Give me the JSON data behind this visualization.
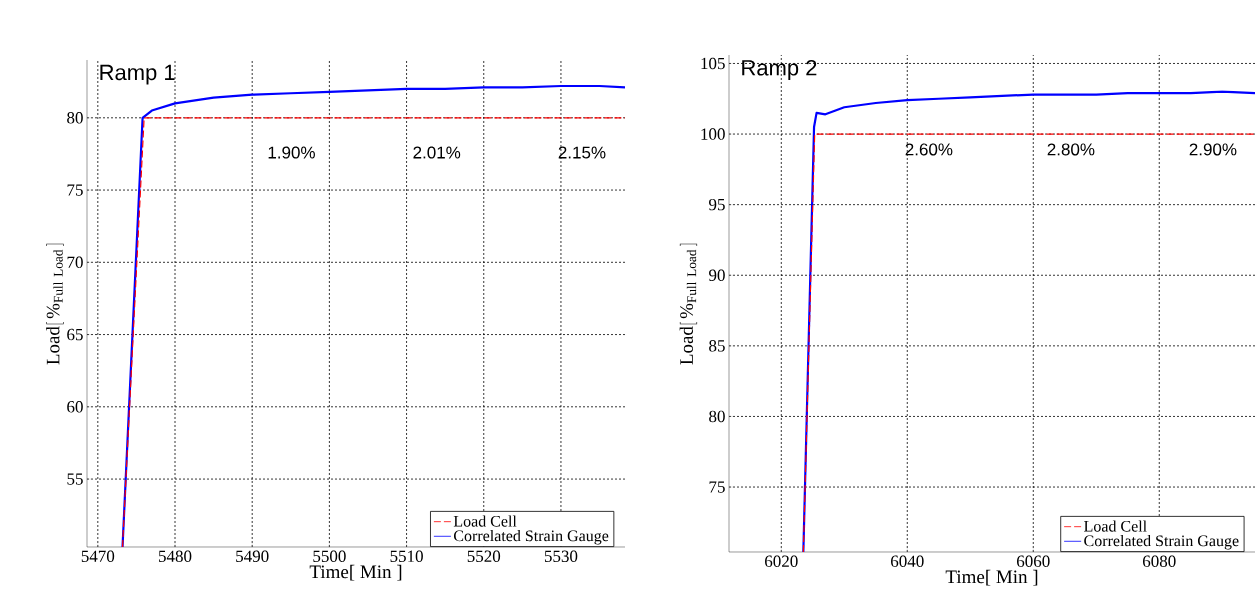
{
  "chart_data": [
    {
      "type": "line",
      "title": "Ramp 1",
      "xlabel": "Time[ Min ]",
      "ylabel": "\\mathrm{Load[\\,\\%_{Full\\ Load}\\,]}",
      "xlim": [
        5468.6,
        5538.3
      ],
      "ylim": [
        50.3,
        84
      ],
      "xticks": [
        5470,
        5480,
        5490,
        5500,
        5510,
        5520,
        5530
      ],
      "yticks": [
        55,
        60,
        65,
        70,
        75,
        80
      ],
      "grid": true,
      "legend": "bottom right",
      "annotations": [
        "1.90%",
        "2.01%",
        "2.15%"
      ],
      "series": [
        {
          "name": "Load Cell",
          "color": "#ff0000",
          "line_style": "dashed",
          "x": [
            5473.2,
            5476.0,
            5480,
            5490,
            5500,
            5510,
            5520,
            5530,
            5538.3
          ],
          "values": [
            50.3,
            80.0,
            80.0,
            80.0,
            80.0,
            80.0,
            80.0,
            80.0,
            80.0
          ]
        },
        {
          "name": "Correlated Strain Gauge",
          "color": "#0000ff",
          "x": [
            5473.2,
            5475.8,
            5477,
            5480,
            5485,
            5490,
            5495,
            5500,
            5505,
            5510,
            5515,
            5520,
            5525,
            5530,
            5535,
            5538.3
          ],
          "values": [
            50.3,
            80.0,
            80.5,
            81.0,
            81.4,
            81.6,
            81.7,
            81.8,
            81.9,
            82.0,
            82.0,
            82.1,
            82.1,
            82.2,
            82.2,
            82.1
          ]
        }
      ]
    },
    {
      "type": "line",
      "title": "Ramp 2",
      "xlabel": "Time[ Min ]",
      "ylabel": "\\mathrm{Load[\\,\\%_{Full\\ Load}\\,]}",
      "xlim": [
        6011.7,
        6095.2
      ],
      "ylim": [
        70.4,
        105.6
      ],
      "xticks": [
        6020,
        6040,
        6060,
        6080
      ],
      "yticks": [
        75,
        80,
        85,
        90,
        95,
        100,
        105
      ],
      "grid": true,
      "legend": "bottom right",
      "annotations": [
        "2.60%",
        "2.80%",
        "2.90%"
      ],
      "series": [
        {
          "name": "Load Cell",
          "color": "#ff0000",
          "line_style": "dashed",
          "x": [
            6023.5,
            6025.3,
            6030,
            6040,
            6050,
            6060,
            6070,
            6080,
            6090,
            6095.2
          ],
          "values": [
            70.4,
            100.0,
            100.0,
            100.0,
            100.0,
            100.0,
            100.0,
            100.0,
            100.0,
            100.0
          ]
        },
        {
          "name": "Correlated Strain Gauge",
          "color": "#0000ff",
          "x": [
            6023.5,
            6025.2,
            6025.6,
            6027,
            6030,
            6035,
            6040,
            6045,
            6050,
            6055,
            6060,
            6065,
            6070,
            6075,
            6080,
            6085,
            6090,
            6095.2
          ],
          "values": [
            70.4,
            100.5,
            101.5,
            101.4,
            101.9,
            102.2,
            102.4,
            102.5,
            102.6,
            102.7,
            102.8,
            102.8,
            102.8,
            102.9,
            102.9,
            102.9,
            103.0,
            102.9
          ]
        }
      ]
    }
  ]
}
